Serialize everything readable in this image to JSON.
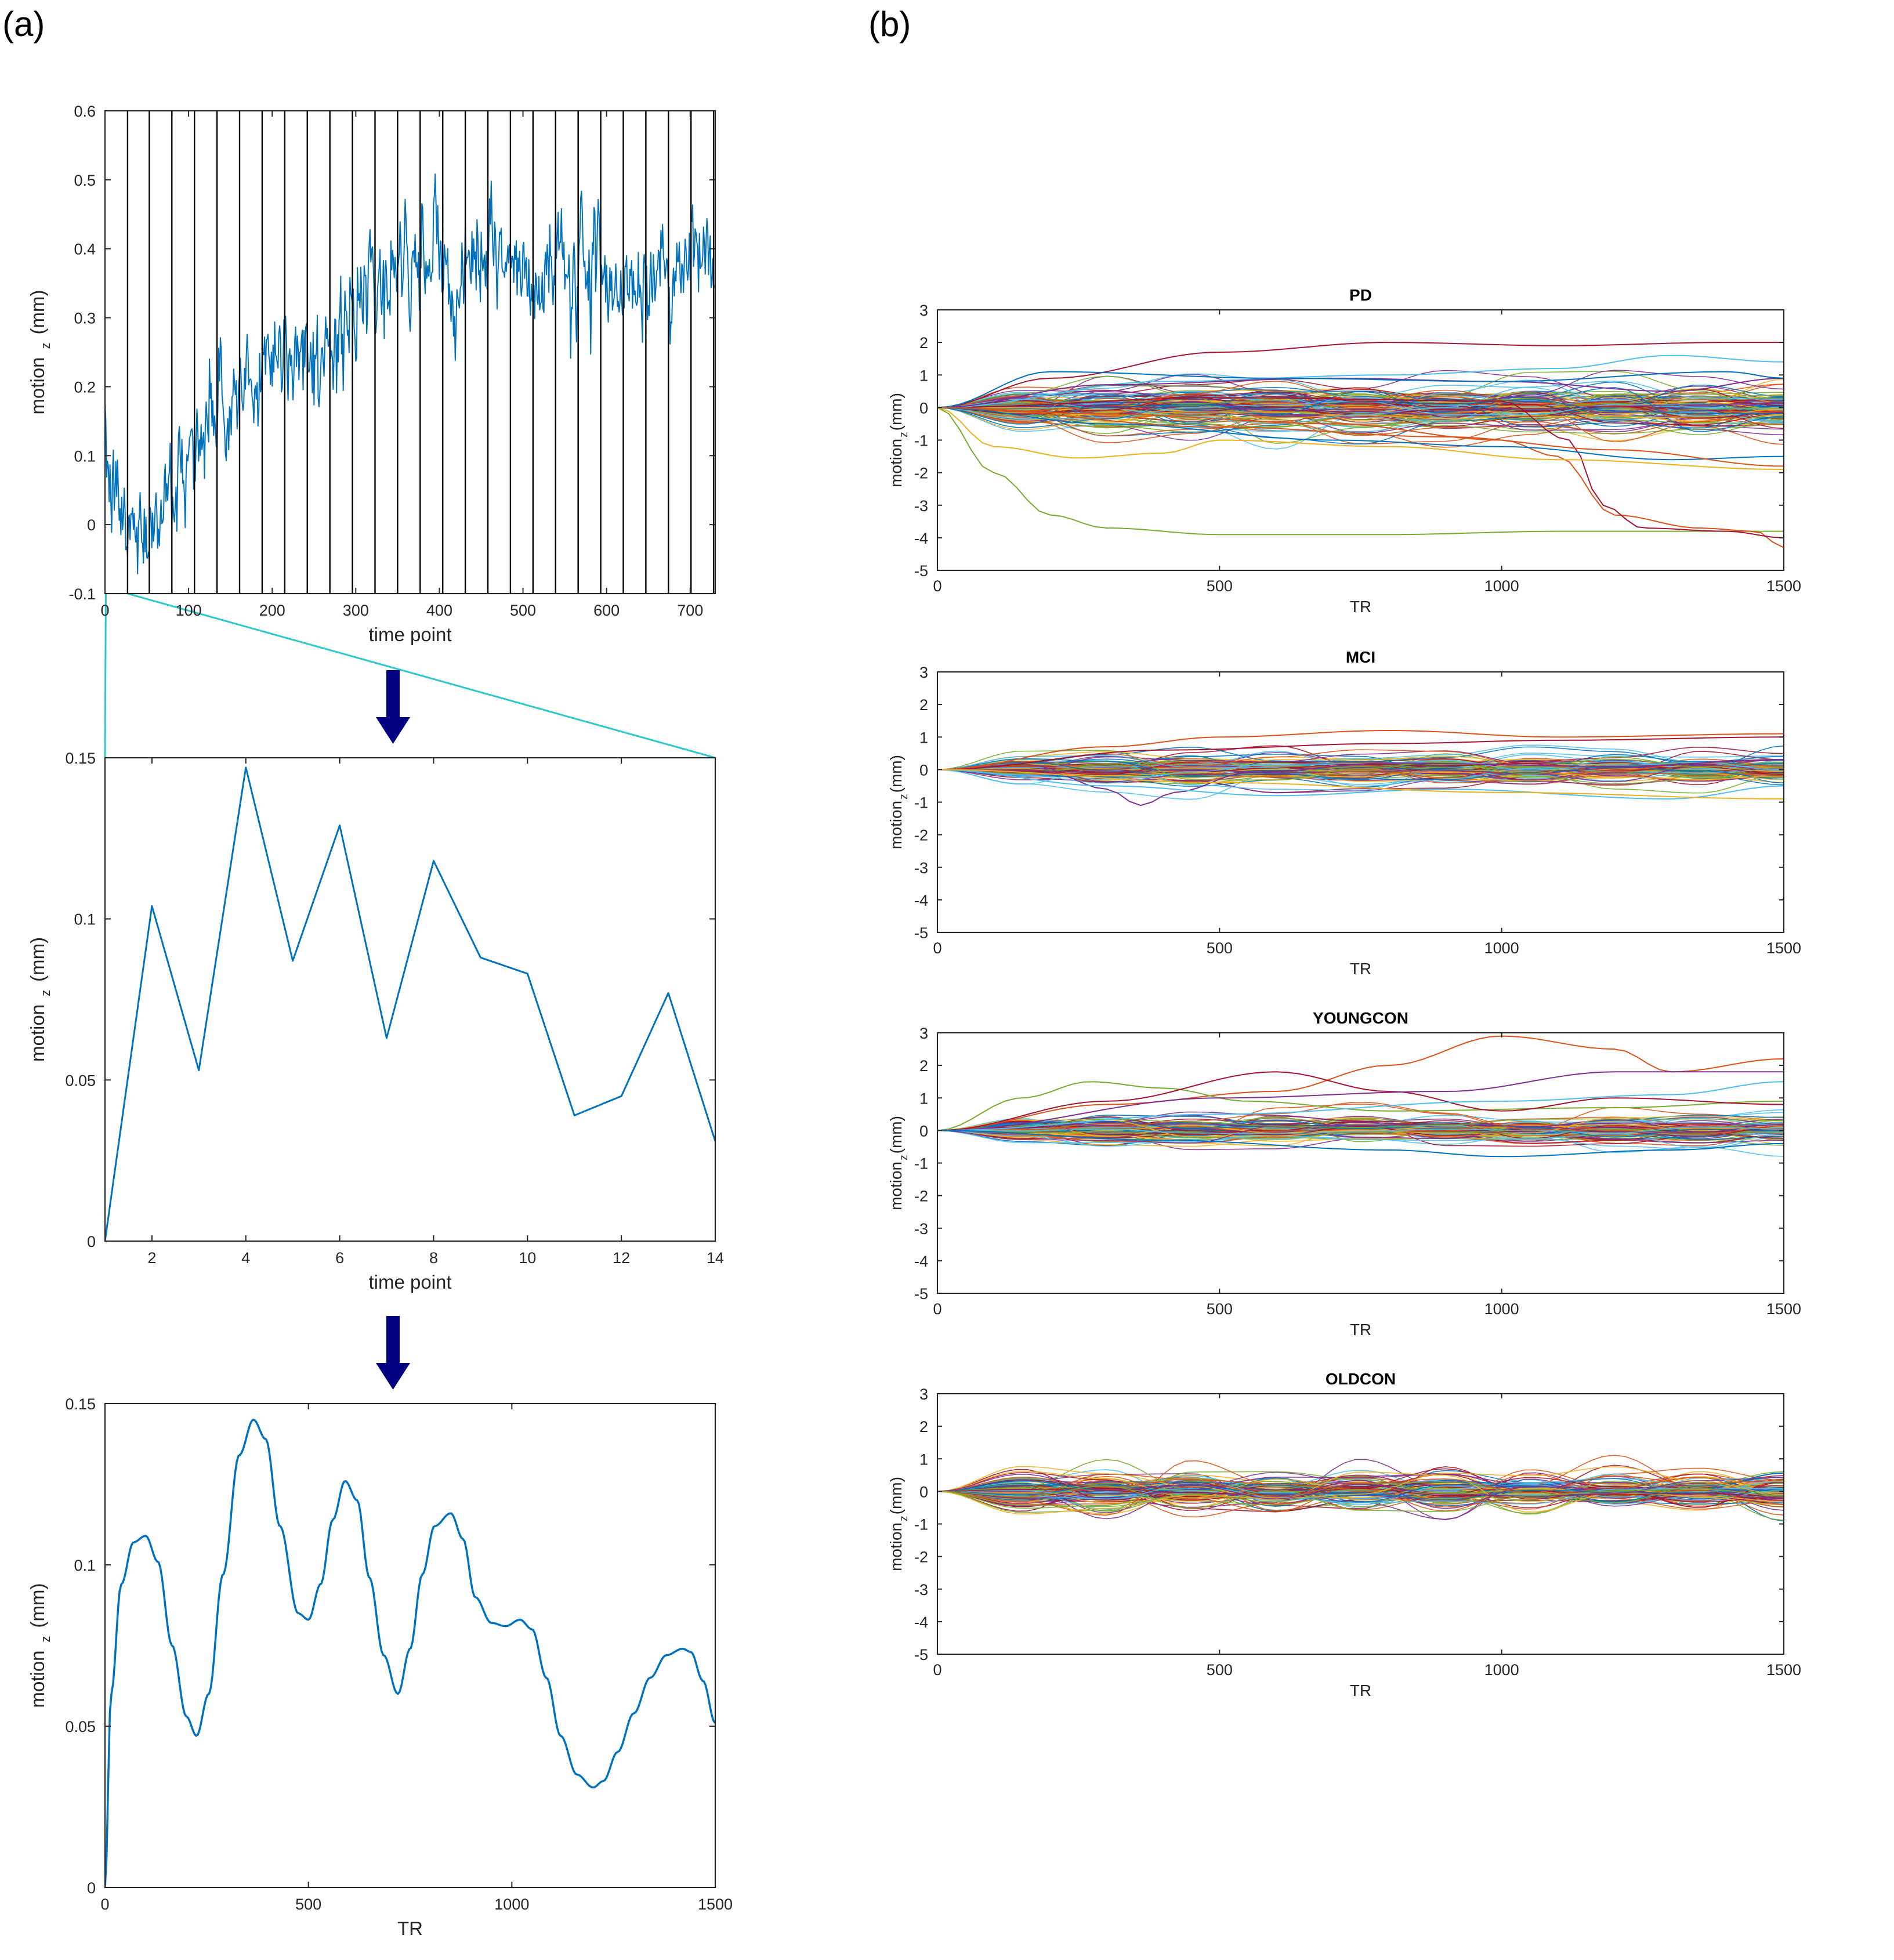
{
  "panel_labels": {
    "a": "(a)",
    "b": "(b)"
  },
  "colors": {
    "series_blue": "#0072bd",
    "zoom_cyan": "#2ec8cc",
    "arrow_navy": "#000080",
    "axis": "#262626",
    "matlab_palette": [
      "#0072bd",
      "#d95319",
      "#edb120",
      "#7e2f8e",
      "#77ac30",
      "#4dbeee",
      "#a2142f"
    ]
  },
  "icons": {
    "arrow": "down-arrow-icon"
  },
  "chart_data": [
    {
      "id": "a1",
      "type": "line",
      "xlabel": "time point",
      "ylabel": "motion",
      "ylabel_sub": "z",
      "ylabel_unit": "(mm)",
      "xlim": [
        0,
        730
      ],
      "ylim": [
        -0.1,
        0.6
      ],
      "xticks": [
        0,
        100,
        200,
        300,
        400,
        500,
        600,
        700
      ],
      "yticks": [
        -0.1,
        0,
        0.1,
        0.2,
        0.3,
        0.4,
        0.5,
        0.6
      ],
      "segment_boundaries": [
        27,
        53,
        80,
        107,
        134,
        161,
        188,
        215,
        242,
        269,
        296,
        323,
        350,
        377,
        404,
        431,
        458,
        485,
        512,
        539,
        566,
        593,
        620,
        647,
        674,
        701,
        728
      ],
      "trend": {
        "x": [
          0,
          10,
          25,
          40,
          55,
          70,
          85,
          100,
          120,
          140,
          160,
          180,
          200,
          220,
          240,
          260,
          280,
          300,
          320,
          340,
          360,
          380,
          400,
          420,
          440,
          460,
          480,
          500,
          510,
          520,
          540,
          560,
          580,
          600,
          620,
          640,
          660,
          680,
          700,
          715,
          730
        ],
        "y": [
          0.08,
          0.04,
          0.0,
          -0.01,
          0.01,
          0.03,
          0.06,
          0.11,
          0.15,
          0.17,
          0.18,
          0.21,
          0.26,
          0.26,
          0.25,
          0.24,
          0.27,
          0.3,
          0.34,
          0.35,
          0.37,
          0.38,
          0.38,
          0.37,
          0.39,
          0.4,
          0.38,
          0.35,
          0.31,
          0.36,
          0.38,
          0.37,
          0.38,
          0.37,
          0.35,
          0.34,
          0.36,
          0.37,
          0.39,
          0.4,
          0.36
        ]
      },
      "noise_sd": 0.035,
      "n_points": 730
    },
    {
      "id": "a2",
      "type": "line",
      "xlabel": "time point",
      "ylabel": "motion",
      "ylabel_sub": "z",
      "ylabel_unit": "(mm)",
      "xlim": [
        1,
        14
      ],
      "ylim": [
        0,
        0.15
      ],
      "xticks": [
        2,
        4,
        6,
        8,
        10,
        12,
        14
      ],
      "yticks": [
        0,
        0.05,
        0.1,
        0.15
      ],
      "x": [
        1,
        2,
        3,
        4,
        5,
        6,
        7,
        8,
        9,
        10,
        11,
        12,
        13,
        14
      ],
      "y": [
        0.0,
        0.104,
        0.053,
        0.147,
        0.087,
        0.129,
        0.063,
        0.118,
        0.088,
        0.083,
        0.039,
        0.045,
        0.077,
        0.031
      ]
    },
    {
      "id": "a3",
      "type": "line",
      "xlabel": "TR",
      "ylabel": "motion",
      "ylabel_sub": "z",
      "ylabel_unit": "(mm)",
      "xlim": [
        0,
        1500
      ],
      "ylim": [
        0,
        0.15
      ],
      "xticks": [
        0,
        500,
        1000,
        1500
      ],
      "yticks": [
        0,
        0.05,
        0.1,
        0.15
      ],
      "x": [
        0,
        15,
        40,
        70,
        100,
        130,
        165,
        200,
        225,
        255,
        290,
        330,
        365,
        395,
        430,
        475,
        500,
        530,
        560,
        590,
        620,
        650,
        685,
        720,
        750,
        780,
        810,
        850,
        880,
        910,
        950,
        985,
        1020,
        1050,
        1085,
        1120,
        1160,
        1200,
        1225,
        1260,
        1300,
        1340,
        1380,
        1420,
        1440,
        1470,
        1500
      ],
      "y": [
        0.0,
        0.06,
        0.094,
        0.107,
        0.109,
        0.101,
        0.075,
        0.053,
        0.047,
        0.06,
        0.097,
        0.134,
        0.145,
        0.139,
        0.112,
        0.085,
        0.083,
        0.094,
        0.114,
        0.126,
        0.12,
        0.096,
        0.072,
        0.06,
        0.074,
        0.097,
        0.112,
        0.116,
        0.108,
        0.09,
        0.082,
        0.081,
        0.083,
        0.08,
        0.065,
        0.047,
        0.035,
        0.031,
        0.033,
        0.042,
        0.054,
        0.065,
        0.072,
        0.074,
        0.073,
        0.064,
        0.051
      ]
    },
    {
      "id": "b-pd",
      "type": "line",
      "title": "PD",
      "xlabel": "TR",
      "ylabel": "motion",
      "ylabel_sub": "z",
      "ylabel_unit": "(mm)",
      "xlim": [
        0,
        1500
      ],
      "ylim": [
        -5,
        3
      ],
      "xticks": [
        0,
        500,
        1000,
        1500
      ],
      "yticks": [
        3,
        2,
        1,
        0,
        -1,
        -2,
        -3,
        -4,
        -5
      ],
      "n_traces": 120,
      "bulk_spread": 0.32,
      "traces": [
        {
          "color": "#a2142f",
          "x": [
            0,
            200,
            500,
            800,
            1100,
            1400,
            1500
          ],
          "y": [
            0,
            0.9,
            1.7,
            2.0,
            1.9,
            2.0,
            2.0
          ]
        },
        {
          "color": "#77ac30",
          "x": [
            0,
            100,
            200,
            300,
            500,
            800,
            1100,
            1300,
            1500
          ],
          "y": [
            0,
            -2.0,
            -3.3,
            -3.7,
            -3.9,
            -3.9,
            -3.8,
            -3.8,
            -3.8
          ]
        },
        {
          "color": "#d95319",
          "x": [
            0,
            300,
            700,
            1000,
            1100,
            1200,
            1350,
            1450,
            1500
          ],
          "y": [
            0,
            -0.2,
            -0.5,
            -1.0,
            -1.5,
            -3.3,
            -3.7,
            -3.8,
            -4.3
          ]
        },
        {
          "color": "#a2142f",
          "x": [
            0,
            500,
            1000,
            1120,
            1180,
            1250,
            1400,
            1500
          ],
          "y": [
            0,
            0.3,
            0.2,
            -1.0,
            -3.0,
            -3.7,
            -3.8,
            -4.0
          ]
        },
        {
          "color": "#edb120",
          "x": [
            0,
            100,
            250,
            400,
            500,
            800,
            1100,
            1500
          ],
          "y": [
            0,
            -1.2,
            -1.55,
            -1.4,
            -1.0,
            -1.2,
            -1.6,
            -1.9
          ]
        },
        {
          "color": "#0072bd",
          "x": [
            0,
            300,
            700,
            1000,
            1300,
            1500
          ],
          "y": [
            0,
            -0.5,
            -1.0,
            -1.2,
            -1.6,
            -1.5
          ]
        },
        {
          "color": "#4dbeee",
          "x": [
            0,
            400,
            800,
            1100,
            1300,
            1500
          ],
          "y": [
            0,
            0.8,
            1.0,
            1.2,
            1.6,
            1.4
          ]
        },
        {
          "color": "#7e2f8e",
          "x": [
            0,
            300,
            700,
            1000,
            1300,
            1500
          ],
          "y": [
            0,
            0.7,
            0.9,
            0.8,
            0.5,
            0.9
          ]
        },
        {
          "color": "#0072bd",
          "x": [
            0,
            200,
            600,
            1000,
            1400,
            1500
          ],
          "y": [
            0,
            1.1,
            0.9,
            0.8,
            1.1,
            0.9
          ]
        },
        {
          "color": "#d95319",
          "x": [
            0,
            500,
            900,
            1200,
            1500
          ],
          "y": [
            0,
            -0.6,
            -0.9,
            -1.3,
            -1.8
          ]
        }
      ]
    },
    {
      "id": "b-mci",
      "type": "line",
      "title": "MCI",
      "xlabel": "TR",
      "ylabel": "motion",
      "ylabel_sub": "z",
      "ylabel_unit": "(mm)",
      "xlim": [
        0,
        1500
      ],
      "ylim": [
        -5,
        3
      ],
      "xticks": [
        0,
        500,
        1000,
        1500
      ],
      "yticks": [
        3,
        2,
        1,
        0,
        -1,
        -2,
        -3,
        -4,
        -5
      ],
      "n_traces": 90,
      "bulk_spread": 0.22,
      "traces": [
        {
          "color": "#7e2f8e",
          "x": [
            0,
            200,
            300,
            360,
            420,
            550,
            800,
            1200,
            1500
          ],
          "y": [
            0,
            -0.1,
            -0.6,
            -1.1,
            -0.7,
            -0.1,
            0.2,
            0.1,
            0.3
          ]
        },
        {
          "color": "#d95319",
          "x": [
            0,
            300,
            500,
            800,
            1100,
            1500
          ],
          "y": [
            0,
            0.7,
            1.0,
            1.2,
            1.0,
            1.1
          ]
        },
        {
          "color": "#a2142f",
          "x": [
            0,
            400,
            800,
            1100,
            1500
          ],
          "y": [
            0,
            0.6,
            0.8,
            0.9,
            1.0
          ]
        },
        {
          "color": "#4dbeee",
          "x": [
            0,
            300,
            600,
            900,
            1300,
            1500
          ],
          "y": [
            0,
            -0.5,
            -0.8,
            -0.6,
            -0.9,
            -0.5
          ]
        },
        {
          "color": "#edb120",
          "x": [
            0,
            500,
            1000,
            1500
          ],
          "y": [
            0,
            -0.4,
            -0.7,
            -0.9
          ]
        }
      ]
    },
    {
      "id": "b-youngcon",
      "type": "line",
      "title": "YOUNGCON",
      "xlabel": "TR",
      "ylabel": "motion",
      "ylabel_sub": "z",
      "ylabel_unit": "(mm)",
      "xlim": [
        0,
        1500
      ],
      "ylim": [
        -5,
        3
      ],
      "xticks": [
        0,
        500,
        1000,
        1500
      ],
      "yticks": [
        3,
        2,
        1,
        0,
        -1,
        -2,
        -3,
        -4,
        -5
      ],
      "n_traces": 90,
      "bulk_spread": 0.22,
      "traces": [
        {
          "color": "#d95319",
          "x": [
            0,
            300,
            600,
            800,
            1000,
            1200,
            1300,
            1500
          ],
          "y": [
            0,
            0.8,
            1.2,
            2.0,
            2.9,
            2.5,
            1.8,
            2.2
          ]
        },
        {
          "color": "#77ac30",
          "x": [
            0,
            150,
            270,
            400,
            550,
            800,
            1200,
            1500
          ],
          "y": [
            0,
            1.0,
            1.5,
            1.3,
            0.9,
            0.6,
            0.7,
            0.9
          ]
        },
        {
          "color": "#a2142f",
          "x": [
            0,
            300,
            600,
            800,
            1000,
            1200,
            1500
          ],
          "y": [
            0,
            0.9,
            1.8,
            1.2,
            0.6,
            1.0,
            0.8
          ]
        },
        {
          "color": "#7e2f8e",
          "x": [
            0,
            500,
            900,
            1200,
            1500
          ],
          "y": [
            0,
            1.0,
            1.2,
            1.8,
            1.8
          ]
        },
        {
          "color": "#4dbeee",
          "x": [
            0,
            500,
            1000,
            1300,
            1500
          ],
          "y": [
            0,
            0.5,
            0.9,
            1.1,
            1.5
          ]
        },
        {
          "color": "#0072bd",
          "x": [
            0,
            400,
            800,
            1000,
            1300,
            1500
          ],
          "y": [
            0,
            -0.3,
            -0.6,
            -0.8,
            -0.6,
            -0.4
          ]
        }
      ]
    },
    {
      "id": "b-oldcon",
      "type": "line",
      "title": "OLDCON",
      "xlabel": "TR",
      "ylabel": "motion",
      "ylabel_sub": "z",
      "ylabel_unit": "(mm)",
      "xlim": [
        0,
        1500
      ],
      "ylim": [
        -5,
        3
      ],
      "xticks": [
        0,
        500,
        1000,
        1500
      ],
      "yticks": [
        3,
        2,
        1,
        0,
        -1,
        -2,
        -3,
        -4,
        -5
      ],
      "n_traces": 110,
      "bulk_spread": 0.25,
      "oscillating": true,
      "traces": []
    }
  ]
}
